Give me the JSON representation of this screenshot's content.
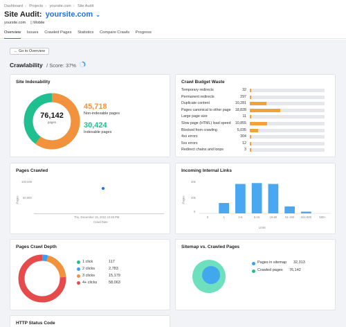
{
  "breadcrumbs": [
    "Dashboard",
    "Projects",
    "yoursite.com",
    "Site Audit"
  ],
  "header": {
    "title": "Site Audit:",
    "domain": "yoursite.com",
    "site": "yoursite.com",
    "device": "Mobile"
  },
  "tabs": [
    "Overview",
    "Issues",
    "Crawled Pages",
    "Statistics",
    "Compare Crawls",
    "Progress"
  ],
  "go_button": "Go to Overview",
  "page": {
    "title": "Crawlability",
    "score_label": "/ Score: 37%"
  },
  "colors": {
    "orange": "#f2923c",
    "green": "#1fbf8f",
    "blue": "#3b9ef5",
    "red": "#e64b4b",
    "accent": "#1a73e8"
  },
  "site_indexability": {
    "title": "Site Indexability",
    "total": "76,142",
    "total_label": "pages",
    "non_indexable_value": "45,718",
    "non_indexable_label": "Non-indexable pages",
    "indexable_value": "30,424",
    "indexable_label": "Indexable pages",
    "non_indexable_share": 0.6
  },
  "crawl_budget_waste": {
    "title": "Crawl Budget Waste",
    "items": [
      {
        "label": "Temporary redirects",
        "value": "32",
        "share": 0.01
      },
      {
        "label": "Permanent redirects",
        "value": "297",
        "share": 0.02
      },
      {
        "label": "Duplicate content",
        "value": "10,281",
        "share": 0.22
      },
      {
        "label": "Pages canonical to other page",
        "value": "18,828",
        "share": 0.41
      },
      {
        "label": "Large page size",
        "value": "11",
        "share": 0.01
      },
      {
        "label": "Slow page (HTML) load speed",
        "value": "10,855",
        "share": 0.23
      },
      {
        "label": "Blocked from crawling",
        "value": "5,035",
        "share": 0.11
      },
      {
        "label": "4xx errors",
        "value": "304",
        "share": 0.02
      },
      {
        "label": "5xx errors",
        "value": "12",
        "share": 0.01
      },
      {
        "label": "Redirect chains and loops",
        "value": "3",
        "share": 0.01
      }
    ]
  },
  "pages_crawled": {
    "title": "Pages Crawled",
    "ylabel": "Pages",
    "xlabel": "Crawl Date",
    "y_ticks": [
      "100,000",
      "50,000"
    ],
    "date_label": "Thu, December 15, 2022 10:45 PM"
  },
  "incoming_links": {
    "title": "Incoming Internal Links",
    "ylabel": "Pages",
    "xlabel": "Links",
    "y_ticks": [
      "40k",
      "20k",
      "0"
    ]
  },
  "chart_data": [
    {
      "type": "scatter",
      "title": "Pages Crawled",
      "xlabel": "Crawl Date",
      "ylabel": "Pages",
      "x": [
        "Thu, December 15, 2022 10:45 PM"
      ],
      "values": [
        76142
      ],
      "ylim": [
        0,
        100000
      ]
    },
    {
      "type": "bar",
      "title": "Incoming Internal Links",
      "xlabel": "Links",
      "ylabel": "Pages",
      "categories": [
        "0",
        "1",
        "2-5",
        "6-15",
        "16-50",
        "51-150",
        "151-500",
        "500+"
      ],
      "values": [
        0,
        12000,
        34000,
        35000,
        34000,
        8000,
        2000,
        0
      ],
      "ylim": [
        0,
        40000
      ]
    },
    {
      "type": "pie",
      "title": "Pages Crawl Depth",
      "categories": [
        "1 click",
        "2 clicks",
        "3 clicks",
        "4+ clicks"
      ],
      "values": [
        117,
        2783,
        15179,
        58063
      ]
    }
  ],
  "crawl_depth": {
    "title": "Pages Crawl Depth",
    "items": [
      {
        "label": "1 click",
        "value": "117",
        "color": "#1fbf8f"
      },
      {
        "label": "2 clicks",
        "value": "2,783",
        "color": "#3b9ef5"
      },
      {
        "label": "3 clicks",
        "value": "15,179",
        "color": "#f2923c"
      },
      {
        "label": "4+ clicks",
        "value": "58,063",
        "color": "#e64b4b"
      }
    ]
  },
  "sitemap": {
    "title": "Sitemap vs. Crawled Pages",
    "in_sitemap_label": "Pages in sitemap",
    "in_sitemap_value": "32,313",
    "crawled_label": "Crawled pages",
    "crawled_value": "76,142"
  },
  "http_status": {
    "title": "HTTP Status Code"
  }
}
